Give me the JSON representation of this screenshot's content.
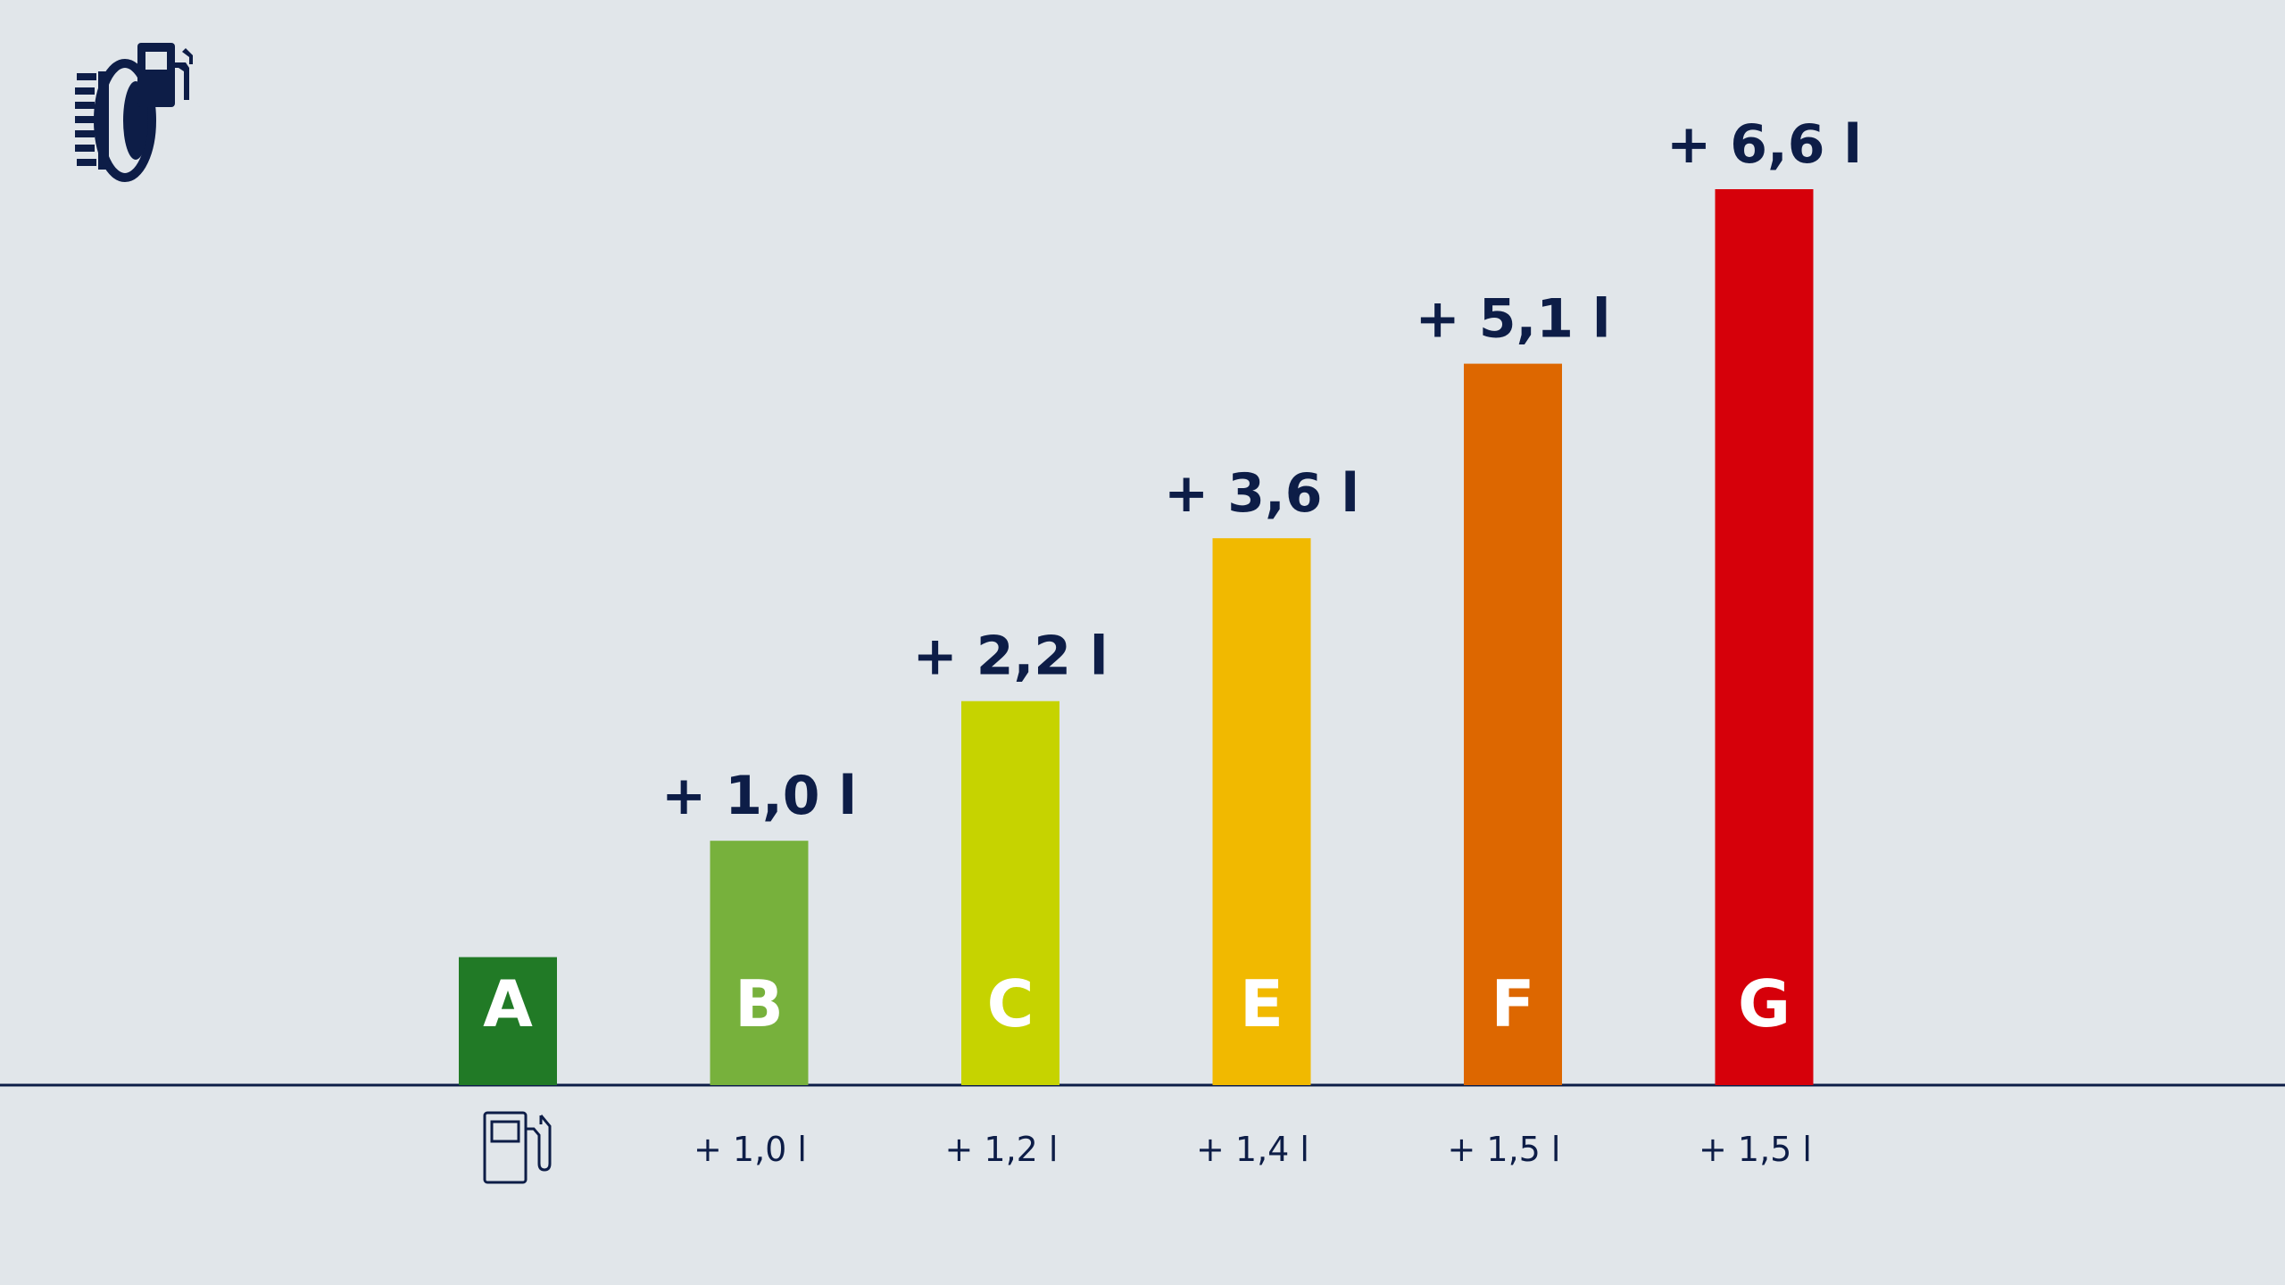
{
  "chart_data": {
    "type": "bar",
    "categories": [
      "A",
      "B",
      "C",
      "E",
      "F",
      "G"
    ],
    "values": [
      0,
      1.0,
      2.2,
      3.6,
      5.1,
      6.6
    ],
    "value_labels": [
      "",
      "+ 1,0 l",
      "+ 2,2 l",
      "+ 3,6 l",
      "+ 5,1 l",
      "+ 6,6 l"
    ],
    "step_labels": [
      "",
      "+ 1,0 l",
      "+ 1,2 l",
      "+ 1,4 l",
      "+ 1,5 l",
      "+ 1,5 l"
    ],
    "colors": [
      "#217a26",
      "#77b13c",
      "#c6d300",
      "#f1b900",
      "#dd6700",
      "#d6000a"
    ],
    "ylim": [
      -1.1,
      6.6
    ],
    "title": "",
    "xlabel": "",
    "ylabel": "",
    "grid": false,
    "legend": "none"
  },
  "icons": {
    "header": "tire-fuel-icon",
    "baseline_class": "fuel-pump-icon"
  },
  "theme": {
    "background": "#e1e6ea",
    "ink": "#0d1d47",
    "class_label_color": "#ffffff"
  }
}
